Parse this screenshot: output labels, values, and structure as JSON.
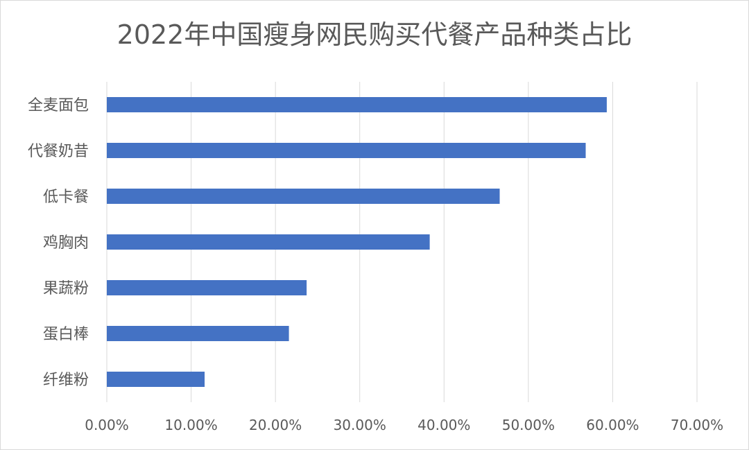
{
  "chart_data": {
    "type": "bar",
    "orientation": "horizontal",
    "title": "2022年中国瘦身网民购买代餐产品种类占比",
    "categories": [
      "全麦面包",
      "代餐奶昔",
      "低卡餐",
      "鸡胸肉",
      "果蔬粉",
      "蛋白棒",
      "纤维粉"
    ],
    "values": [
      59.3,
      56.8,
      46.6,
      38.3,
      23.7,
      21.6,
      11.6
    ],
    "value_unit": "%",
    "xlim": [
      0,
      70
    ],
    "xticks": [
      0,
      10,
      20,
      30,
      40,
      50,
      60,
      70
    ],
    "xtick_labels": [
      "0.00%",
      "10.00%",
      "20.00%",
      "30.00%",
      "40.00%",
      "50.00%",
      "60.00%",
      "70.00%"
    ],
    "xlabel": "",
    "ylabel": "",
    "grid": true,
    "legend": "none",
    "bar_color": "#4472C4",
    "grid_color": "#d9d9d9"
  }
}
